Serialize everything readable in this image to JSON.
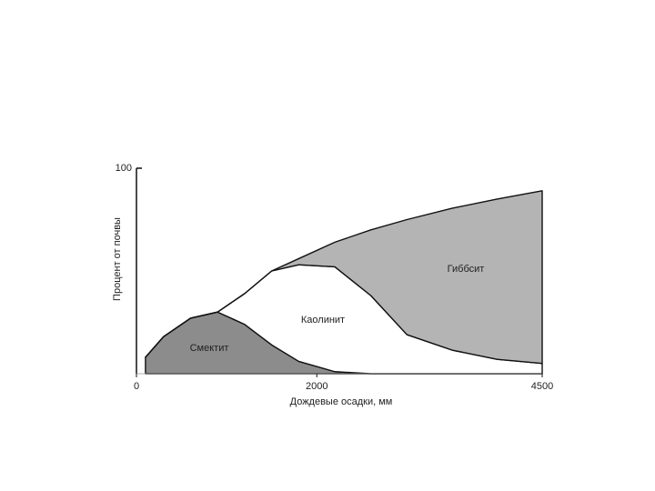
{
  "chart_data": {
    "type": "area",
    "x_label": "Дождевые осадки, мм",
    "y_label": "Процент от почвы",
    "x": [
      100,
      300,
      600,
      900,
      1200,
      1500,
      1800,
      2200,
      2600,
      3000,
      3500,
      4000,
      4500
    ],
    "series": [
      {
        "name": "Смектит",
        "color": "#8c8c8c",
        "values": [
          8,
          18,
          27,
          30,
          24,
          14,
          6,
          1,
          0,
          0,
          0,
          0,
          0
        ]
      },
      {
        "name": "Каолинит",
        "color": "#ffffff",
        "values": [
          0,
          0,
          0,
          0,
          15,
          36,
          47,
          51,
          38,
          19,
          11.5,
          7,
          5
        ]
      },
      {
        "name": "Гиббсит",
        "color": "#b4b4b4",
        "values": [
          0,
          0,
          0,
          0,
          0,
          0,
          3,
          12,
          32,
          56,
          69,
          78,
          84
        ]
      }
    ],
    "stacked": true,
    "xlim": [
      0,
      4500
    ],
    "xticks": [
      0,
      2000,
      4500
    ],
    "ylim": [
      0,
      100
    ],
    "yticks": [
      100
    ]
  }
}
